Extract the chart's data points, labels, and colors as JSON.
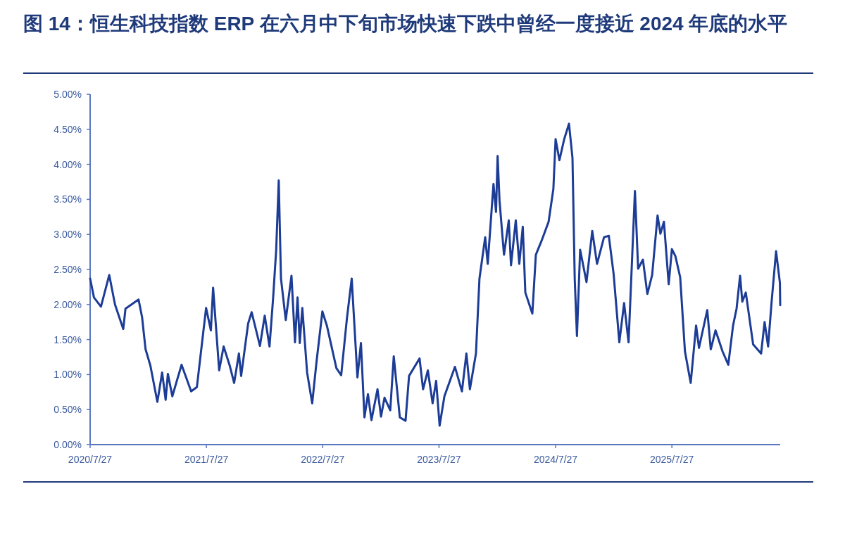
{
  "chart_data": {
    "type": "line",
    "title": "图 14：恒生科技指数 ERP 在六月中下旬市场快速下跌中曾经一度接近 2024 年底的水平",
    "x": [
      "2020-07-27",
      "2020-08-08",
      "2020-08-30",
      "2020-09-25",
      "2020-10-13",
      "2020-11-08",
      "2020-11-15",
      "2020-12-26",
      "2021-01-06",
      "2021-01-17",
      "2021-02-01",
      "2021-02-23",
      "2021-03-10",
      "2021-03-21",
      "2021-03-28",
      "2021-04-11",
      "2021-05-10",
      "2021-06-09",
      "2021-06-27",
      "2021-07-26",
      "2021-08-10",
      "2021-08-17",
      "2021-09-05",
      "2021-09-19",
      "2021-10-08",
      "2021-10-22",
      "2021-11-06",
      "2021-11-13",
      "2021-12-05",
      "2021-12-16",
      "2022-01-11",
      "2022-01-26",
      "2022-02-10",
      "2022-02-21",
      "2022-03-03",
      "2022-03-11",
      "2022-03-18",
      "2022-04-02",
      "2022-04-20",
      "2022-05-01",
      "2022-05-09",
      "2022-05-16",
      "2022-05-24",
      "2022-06-08",
      "2022-06-24",
      "2022-07-08",
      "2022-07-26",
      "2022-08-09",
      "2022-09-08",
      "2022-09-23",
      "2022-10-11",
      "2022-10-26",
      "2022-11-13",
      "2022-11-24",
      "2022-12-05",
      "2022-12-16",
      "2022-12-27",
      "2023-01-15",
      "2023-01-26",
      "2023-02-06",
      "2023-02-24",
      "2023-03-07",
      "2023-03-26",
      "2023-04-13",
      "2023-04-24",
      "2023-05-27",
      "2023-06-07",
      "2023-06-22",
      "2023-07-07",
      "2023-07-18",
      "2023-07-29",
      "2023-08-13",
      "2023-09-15",
      "2023-10-07",
      "2023-10-21",
      "2023-11-01",
      "2023-11-20",
      "2023-12-01",
      "2023-12-19",
      "2023-12-27",
      "2024-01-14",
      "2024-01-22",
      "2024-01-27",
      "2024-02-02",
      "2024-02-16",
      "2024-03-02",
      "2024-03-09",
      "2024-03-24",
      "2024-04-04",
      "2024-04-15",
      "2024-04-23",
      "2024-05-15",
      "2024-05-26",
      "2024-06-13",
      "2024-07-05",
      "2024-07-20",
      "2024-07-27",
      "2024-08-08",
      "2024-08-23",
      "2024-09-07",
      "2024-09-18",
      "2024-09-25",
      "2024-10-02",
      "2024-10-12",
      "2024-11-01",
      "2024-11-19",
      "2024-12-04",
      "2024-12-26",
      "2025-01-10",
      "2025-01-25",
      "2025-02-12",
      "2025-02-27",
      "2025-03-13",
      "2025-04-02",
      "2025-04-12",
      "2025-04-27",
      "2025-05-11",
      "2025-05-26",
      "2025-06-12",
      "2025-06-21",
      "2025-07-02",
      "2025-07-17",
      "2025-07-27",
      "2025-08-07",
      "2025-08-22",
      "2025-09-06",
      "2025-09-24",
      "2025-10-11",
      "2025-10-20",
      "2025-11-15",
      "2025-11-26",
      "2025-12-11",
      "2026-01-02",
      "2026-01-20",
      "2026-02-04",
      "2026-02-15",
      "2026-02-26",
      "2026-03-05",
      "2026-03-16",
      "2026-04-08",
      "2026-05-03",
      "2026-05-14",
      "2026-05-25",
      "2026-06-05",
      "2026-06-19",
      "2026-07-01",
      "2026-07-02"
    ],
    "series": [
      {
        "color": "#1c3c96",
        "values": [
          2.37,
          2.1,
          1.97,
          2.42,
          2.0,
          1.65,
          1.94,
          2.07,
          1.82,
          1.36,
          1.13,
          0.61,
          1.03,
          0.64,
          1.01,
          0.69,
          1.14,
          0.76,
          0.82,
          1.95,
          1.63,
          2.24,
          1.06,
          1.4,
          1.13,
          0.88,
          1.3,
          0.98,
          1.73,
          1.89,
          1.41,
          1.84,
          1.4,
          2.07,
          2.78,
          3.77,
          2.37,
          1.78,
          2.41,
          1.46,
          2.1,
          1.45,
          1.95,
          1.03,
          0.59,
          1.2,
          1.9,
          1.7,
          1.09,
          0.99,
          1.8,
          2.37,
          0.96,
          1.45,
          0.39,
          0.72,
          0.35,
          0.79,
          0.4,
          0.67,
          0.49,
          1.26,
          0.39,
          0.34,
          0.98,
          1.23,
          0.79,
          1.06,
          0.59,
          0.91,
          0.27,
          0.69,
          1.11,
          0.76,
          1.3,
          0.79,
          1.3,
          2.37,
          2.96,
          2.58,
          3.72,
          3.32,
          4.12,
          3.48,
          2.71,
          3.2,
          2.56,
          3.2,
          2.58,
          3.11,
          2.17,
          1.87,
          2.71,
          2.91,
          3.18,
          3.65,
          4.36,
          4.06,
          4.36,
          4.58,
          4.09,
          2.37,
          1.55,
          2.78,
          2.32,
          3.05,
          2.58,
          2.96,
          2.98,
          2.44,
          1.46,
          2.02,
          1.46,
          3.62,
          2.51,
          2.64,
          2.15,
          2.42,
          3.27,
          3.01,
          3.18,
          2.29,
          2.79,
          2.69,
          2.39,
          1.33,
          0.88,
          1.7,
          1.38,
          1.92,
          1.36,
          1.63,
          1.33,
          1.14,
          1.7,
          1.94,
          2.41,
          2.04,
          2.17,
          1.43,
          1.3,
          1.75,
          1.4,
          2.04,
          2.76,
          2.31,
          1.99
        ]
      }
    ],
    "line_style": "solid",
    "xlim": [
      "2020-07-27",
      "2026-07-02"
    ],
    "xticks": [
      {
        "value": "2020-07-27",
        "label": "2020/7/27"
      },
      {
        "value": "2021-07-27",
        "label": "2021/7/27"
      },
      {
        "value": "2022-07-27",
        "label": "2022/7/27"
      },
      {
        "value": "2023-07-27",
        "label": "2023/7/27"
      },
      {
        "value": "2024-07-27",
        "label": "2024/7/27"
      },
      {
        "value": "2025-07-27",
        "label": "2025/7/27"
      }
    ],
    "ylim": [
      0,
      5
    ],
    "yticks": [
      {
        "value": 0,
        "label": "0.00%"
      },
      {
        "value": 0.5,
        "label": "0.50%"
      },
      {
        "value": 1,
        "label": "1.00%"
      },
      {
        "value": 1.5,
        "label": "1.50%"
      },
      {
        "value": 2,
        "label": "2.00%"
      },
      {
        "value": 2.5,
        "label": "2.50%"
      },
      {
        "value": 3,
        "label": "3.00%"
      },
      {
        "value": 3.5,
        "label": "3.50%"
      },
      {
        "value": 4,
        "label": "4.00%"
      },
      {
        "value": 4.5,
        "label": "4.50%"
      },
      {
        "value": 5,
        "label": "5.00%"
      }
    ]
  }
}
